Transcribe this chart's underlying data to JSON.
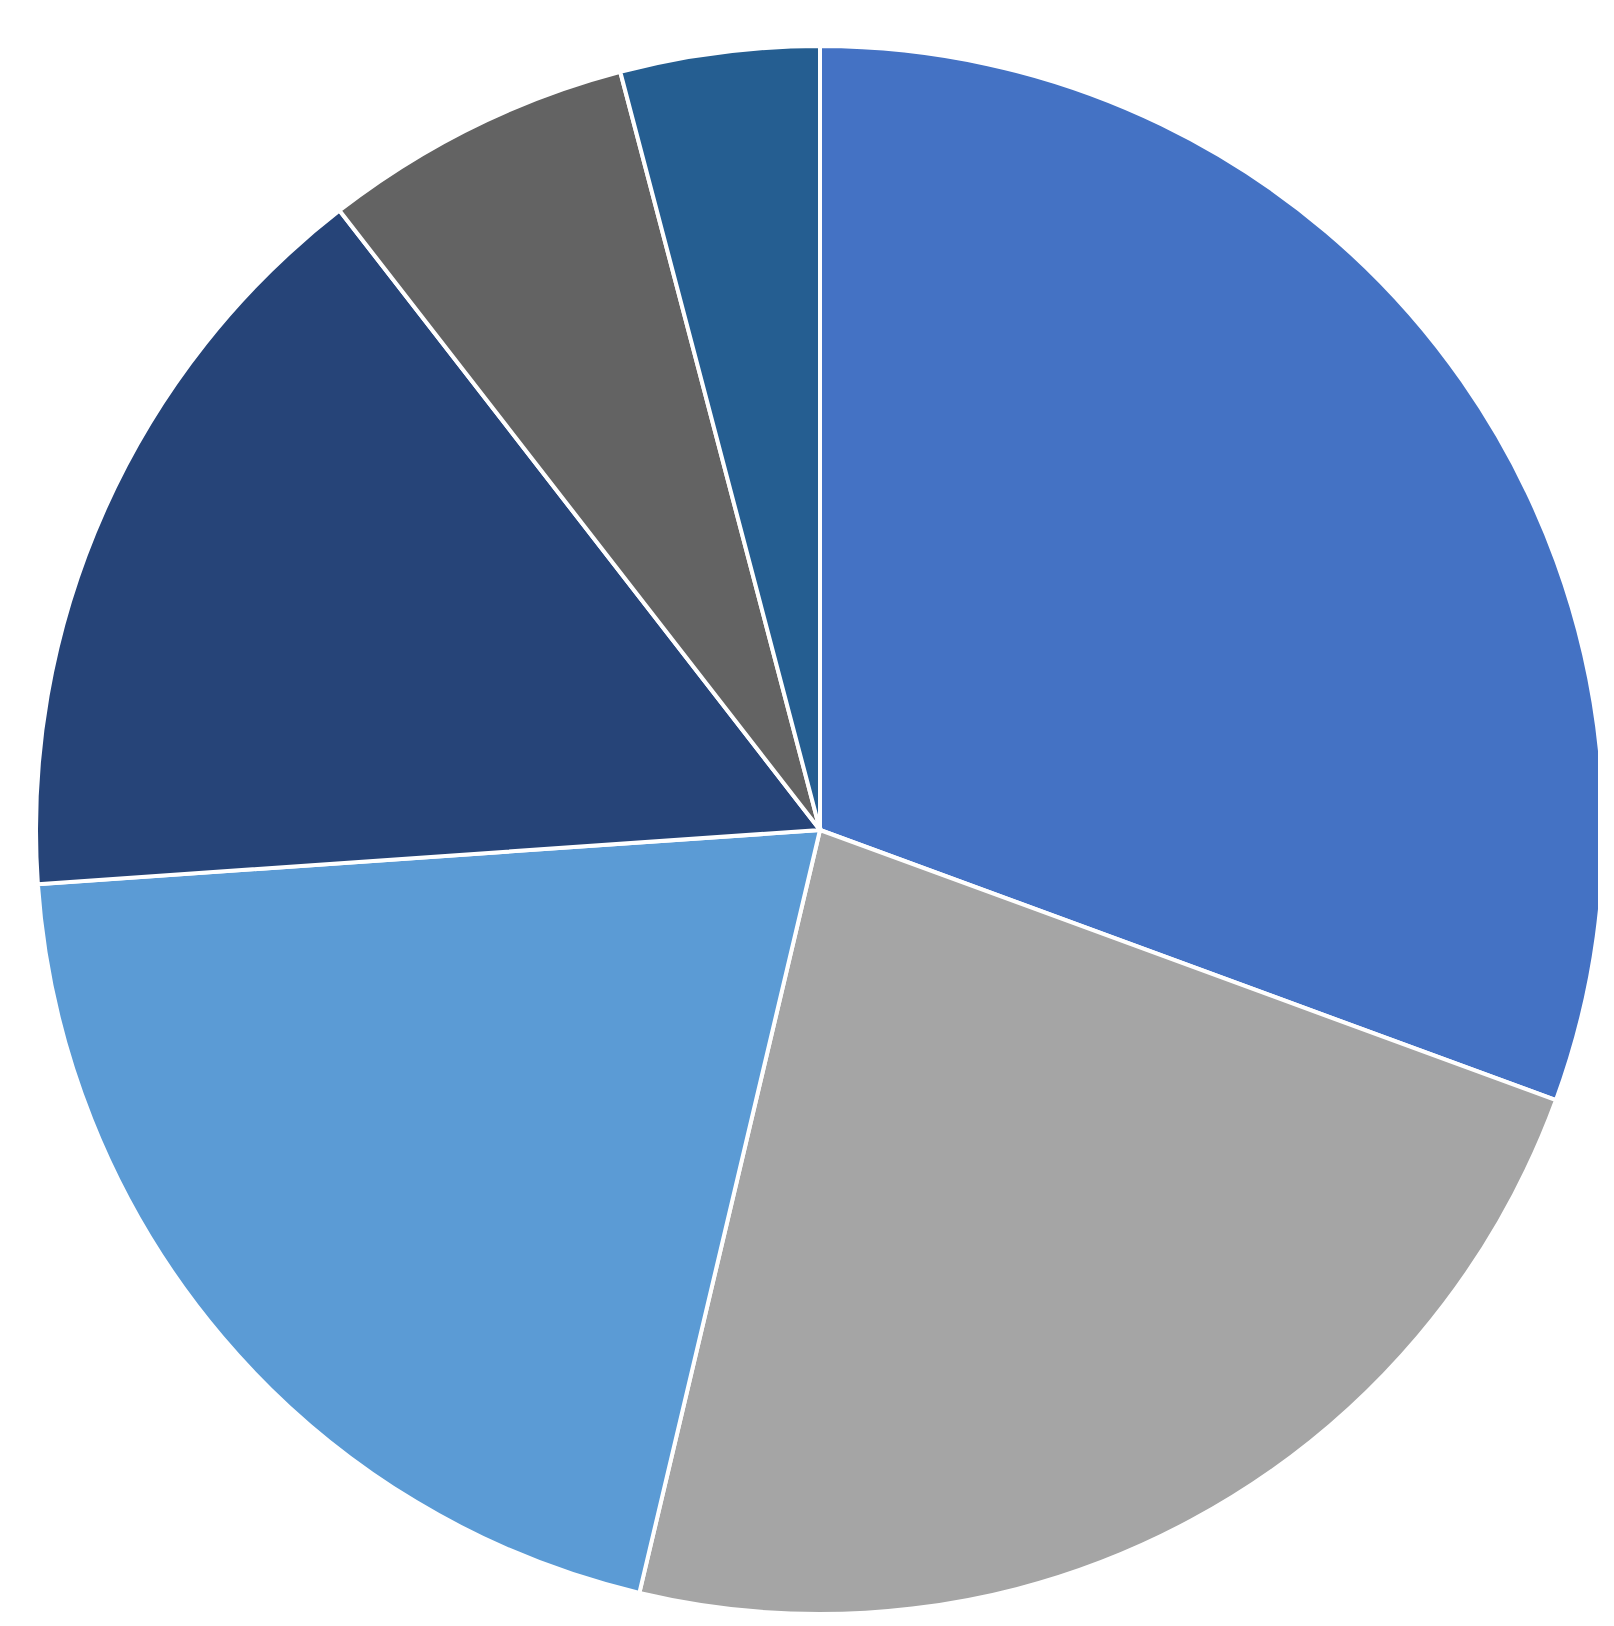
{
  "chart_data": {
    "type": "pie",
    "categories": [
      null,
      null,
      null,
      null,
      null,
      null
    ],
    "values": [
      30.6,
      23.1,
      20.2,
      15.6,
      6.4,
      4.1
    ],
    "colors": [
      "#4472c4",
      "#a5a5a5",
      "#5b9bd5",
      "#264478",
      "#636363",
      "#255e91"
    ]
  }
}
